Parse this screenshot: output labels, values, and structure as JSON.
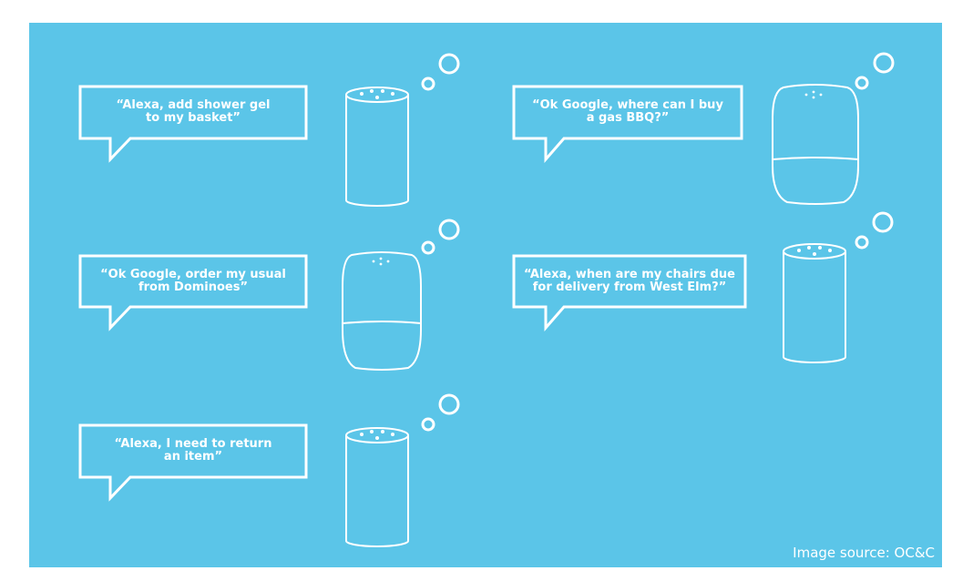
{
  "colors": {
    "background": "#5bc5e8",
    "line": "#ffffff",
    "text": "#ffffff"
  },
  "bubbles": [
    {
      "line1": "“Alexa, add shower gel",
      "line2": "to my basket”",
      "device": "amazon-echo-icon"
    },
    {
      "line1": "“Ok Google, where can I buy",
      "line2": "a gas BBQ?”",
      "device": "google-home-icon"
    },
    {
      "line1": "“Ok Google, order my usual",
      "line2": "from Dominoes”",
      "device": "google-home-icon"
    },
    {
      "line1": "“Alexa, when are my chairs due",
      "line2": "for delivery from West Elm?”",
      "device": "amazon-echo-icon"
    },
    {
      "line1": "“Alexa, I need to return",
      "line2": "an item”",
      "device": "amazon-echo-icon"
    }
  ],
  "source": "Image source: OC&C"
}
